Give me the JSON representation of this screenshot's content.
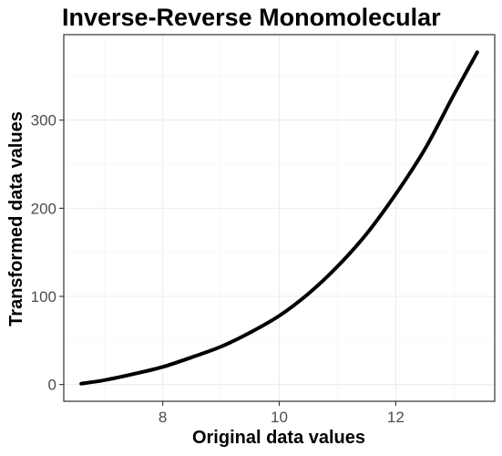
{
  "chart_data": {
    "type": "line",
    "title": "Inverse-Reverse Monomolecular",
    "xlabel": "Original data values",
    "ylabel": "Transformed data values",
    "xlim": [
      6.3,
      13.7
    ],
    "ylim": [
      -19,
      397
    ],
    "x_ticks": [
      8,
      10,
      12
    ],
    "x_tick_labels": [
      "8",
      "10",
      "12"
    ],
    "x_minor_ticks": [
      7,
      9,
      11,
      13
    ],
    "y_ticks": [
      0,
      100,
      200,
      300
    ],
    "y_tick_labels": [
      "0",
      "100",
      "200",
      "300"
    ],
    "y_minor_ticks": [
      50,
      150,
      250,
      350
    ],
    "grid": true,
    "legend": "none",
    "series": [
      {
        "color": "#000000",
        "x": [
          6.6,
          7.0,
          7.5,
          8.0,
          8.5,
          9.0,
          9.5,
          10.0,
          10.5,
          11.0,
          11.5,
          12.0,
          12.5,
          13.0,
          13.4
        ],
        "y": [
          1,
          5,
          12,
          20,
          31,
          43,
          59,
          78,
          103,
          134,
          171,
          216,
          267,
          329,
          377
        ]
      }
    ]
  },
  "colors": {
    "background": "#ffffff",
    "panel_border": "#333333",
    "grid_major": "#ebebeb",
    "grid_minor": "#f5f5f5",
    "line": "#000000",
    "tick_label": "#4d4d4d"
  }
}
